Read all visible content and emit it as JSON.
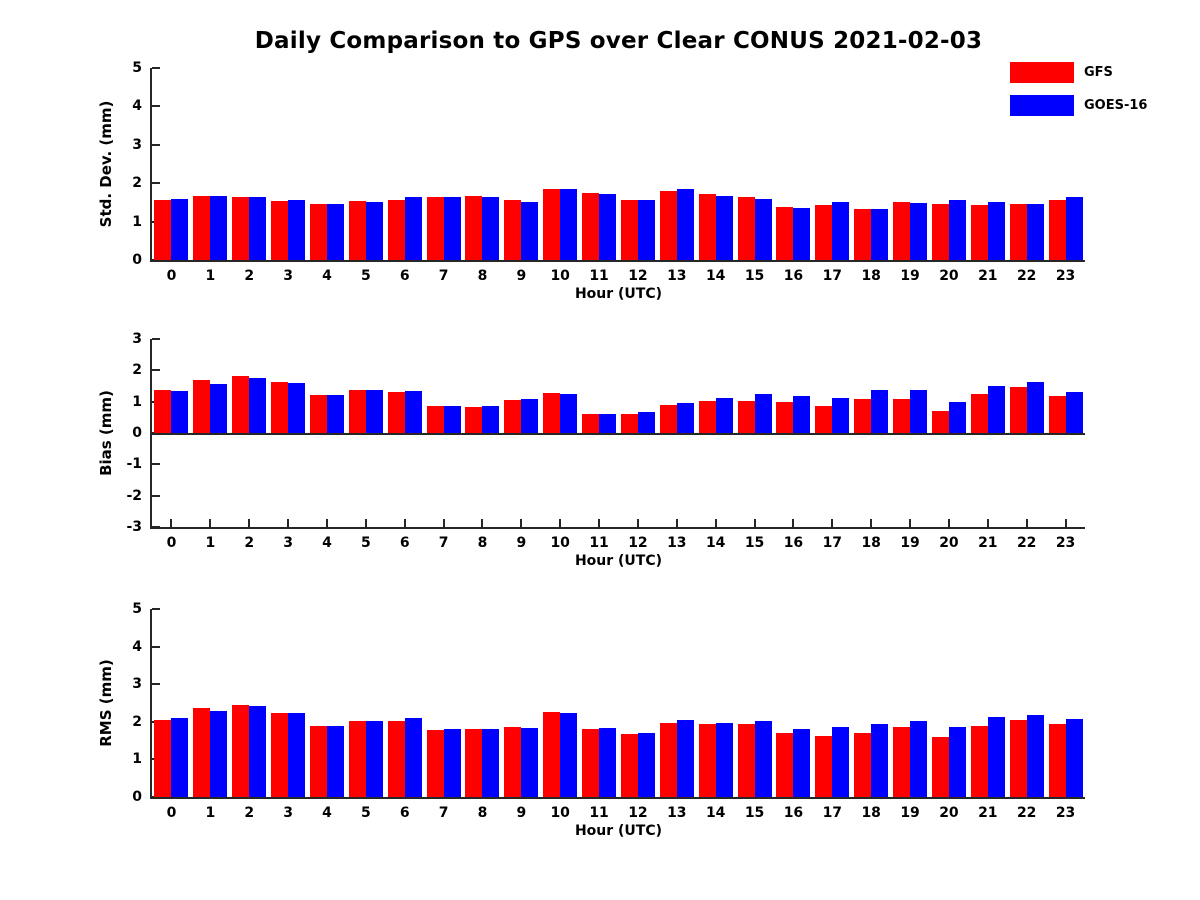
{
  "title": "Daily Comparison to GPS over Clear CONUS 2021-02-03",
  "legend": {
    "items": [
      {
        "label": "GFS",
        "color": "#ff0000"
      },
      {
        "label": "GOES-16",
        "color": "#0000ff"
      }
    ]
  },
  "chart_data": [
    {
      "id": "stddev",
      "type": "bar",
      "title": "Daily Comparison to GPS over Clear CONUS 2021-02-03",
      "ylabel": "Std. Dev. (mm)",
      "xlabel": "Hour (UTC)",
      "ylim": [
        0,
        5
      ],
      "yticks": [
        0,
        1,
        2,
        3,
        4,
        5
      ],
      "grid": false,
      "legend_position": "top-right",
      "categories": [
        "0",
        "1",
        "2",
        "3",
        "4",
        "5",
        "6",
        "7",
        "8",
        "9",
        "10",
        "11",
        "12",
        "13",
        "14",
        "15",
        "16",
        "17",
        "18",
        "19",
        "20",
        "21",
        "22",
        "23"
      ],
      "series": [
        {
          "name": "GFS",
          "color": "#ff0000",
          "values": [
            1.55,
            1.66,
            1.63,
            1.53,
            1.46,
            1.53,
            1.57,
            1.63,
            1.66,
            1.57,
            1.85,
            1.74,
            1.56,
            1.79,
            1.71,
            1.65,
            1.39,
            1.42,
            1.33,
            1.51,
            1.46,
            1.43,
            1.47,
            1.56
          ]
        },
        {
          "name": "GOES-16",
          "color": "#0000ff",
          "values": [
            1.59,
            1.66,
            1.63,
            1.57,
            1.45,
            1.52,
            1.63,
            1.63,
            1.63,
            1.51,
            1.86,
            1.73,
            1.55,
            1.84,
            1.67,
            1.58,
            1.35,
            1.5,
            1.33,
            1.49,
            1.57,
            1.51,
            1.47,
            1.63
          ]
        }
      ]
    },
    {
      "id": "bias",
      "type": "bar",
      "ylabel": "Bias (mm)",
      "xlabel": "Hour (UTC)",
      "ylim": [
        -3,
        3
      ],
      "yticks": [
        -3,
        -2,
        -1,
        0,
        1,
        2,
        3
      ],
      "baseline": 0,
      "grid": false,
      "categories": [
        "0",
        "1",
        "2",
        "3",
        "4",
        "5",
        "6",
        "7",
        "8",
        "9",
        "10",
        "11",
        "12",
        "13",
        "14",
        "15",
        "16",
        "17",
        "18",
        "19",
        "20",
        "21",
        "22",
        "23"
      ],
      "series": [
        {
          "name": "GFS",
          "color": "#ff0000",
          "values": [
            1.38,
            1.68,
            1.82,
            1.63,
            1.2,
            1.38,
            1.3,
            0.85,
            0.82,
            1.05,
            1.28,
            0.6,
            0.62,
            0.9,
            1.01,
            1.03,
            0.98,
            0.85,
            1.1,
            1.1,
            0.7,
            1.26,
            1.46,
            1.18
          ]
        },
        {
          "name": "GOES-16",
          "color": "#0000ff",
          "values": [
            1.35,
            1.56,
            1.74,
            1.59,
            1.21,
            1.38,
            1.35,
            0.85,
            0.85,
            1.08,
            1.25,
            0.62,
            0.68,
            0.96,
            1.13,
            1.24,
            1.19,
            1.13,
            1.37,
            1.36,
            1.0,
            1.5,
            1.64,
            1.3
          ]
        }
      ]
    },
    {
      "id": "rms",
      "type": "bar",
      "ylabel": "RMS (mm)",
      "xlabel": "Hour (UTC)",
      "ylim": [
        0,
        5
      ],
      "yticks": [
        0,
        1,
        2,
        3,
        4,
        5
      ],
      "grid": false,
      "categories": [
        "0",
        "1",
        "2",
        "3",
        "4",
        "5",
        "6",
        "7",
        "8",
        "9",
        "10",
        "11",
        "12",
        "13",
        "14",
        "15",
        "16",
        "17",
        "18",
        "19",
        "20",
        "21",
        "22",
        "23"
      ],
      "series": [
        {
          "name": "GFS",
          "color": "#ff0000",
          "values": [
            2.04,
            2.38,
            2.45,
            2.23,
            1.9,
            2.03,
            2.03,
            1.78,
            1.81,
            1.87,
            2.27,
            1.82,
            1.68,
            1.98,
            1.95,
            1.95,
            1.69,
            1.63,
            1.71,
            1.86,
            1.59,
            1.9,
            2.04,
            1.95
          ]
        },
        {
          "name": "GOES-16",
          "color": "#0000ff",
          "values": [
            2.09,
            2.29,
            2.41,
            2.23,
            1.9,
            2.03,
            2.11,
            1.82,
            1.81,
            1.83,
            2.24,
            1.83,
            1.7,
            2.04,
            1.98,
            2.03,
            1.81,
            1.87,
            1.93,
            2.03,
            1.87,
            2.13,
            2.19,
            2.07
          ]
        }
      ]
    }
  ]
}
